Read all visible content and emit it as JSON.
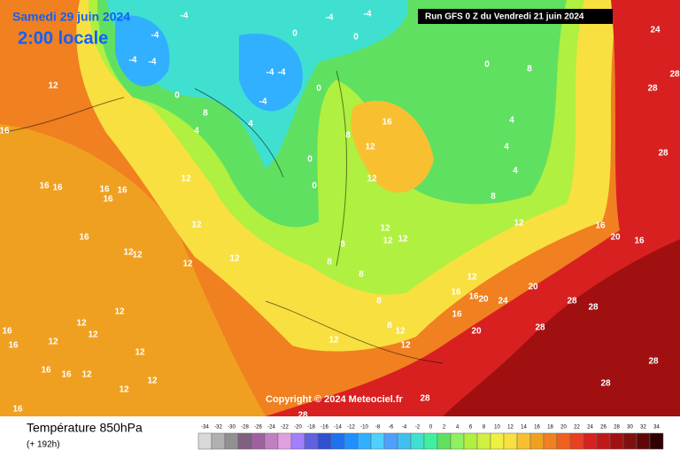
{
  "header": {
    "date": "Samedi 29 juin 2024",
    "time": "2:00 locale",
    "run": "Run GFS 0 Z du Vendredi 21 juin 2024"
  },
  "copyright": "Copyright © 2024 Meteociel.fr",
  "footer": {
    "title": "Température 850hPa",
    "lead": "(+ 192h)"
  },
  "contour_labels": [
    12,
    16,
    16,
    16,
    16,
    16,
    16,
    16,
    12,
    12,
    12,
    12,
    12,
    12,
    12,
    12,
    12,
    16,
    12,
    16,
    12,
    16,
    16,
    12,
    12,
    12,
    16,
    -4,
    -4,
    -4,
    -4,
    -4,
    -4,
    -4,
    -4,
    -4,
    0,
    0,
    0,
    0,
    0,
    0,
    0,
    8,
    4,
    4,
    16,
    12,
    4,
    4,
    4,
    8,
    8,
    8,
    12,
    12,
    12,
    12,
    8,
    8,
    8,
    8,
    12,
    16,
    20,
    16,
    24,
    28,
    28,
    28,
    12,
    16,
    16,
    20,
    24,
    20,
    28,
    28,
    28,
    16,
    20,
    8,
    12,
    12,
    12,
    28,
    28,
    28,
    28
  ],
  "scale": {
    "values": [
      -34,
      -32,
      -30,
      -28,
      -26,
      -24,
      -22,
      -20,
      -18,
      -16,
      -14,
      -12,
      -10,
      -8,
      -6,
      -4,
      -2,
      0,
      2,
      4,
      6,
      8,
      10,
      12,
      14,
      16,
      18,
      20,
      22,
      24,
      26,
      28,
      30,
      32,
      34
    ],
    "colors": [
      "#d8d8d8",
      "#b0b0b0",
      "#909090",
      "#806080",
      "#a060a0",
      "#c080c0",
      "#e0a0e0",
      "#a080ff",
      "#6060e0",
      "#3050d0",
      "#2070f0",
      "#2090ff",
      "#30b0ff",
      "#50d0ff",
      "#50a0ff",
      "#40c0f0",
      "#40e0d0",
      "#40f0a0",
      "#60e060",
      "#90f060",
      "#b0f040",
      "#d0f040",
      "#f0f040",
      "#f8e040",
      "#f8c030",
      "#f0a020",
      "#f08020",
      "#f06020",
      "#e84020",
      "#d82020",
      "#c01818",
      "#a01010",
      "#801010",
      "#600808",
      "#300000"
    ]
  }
}
